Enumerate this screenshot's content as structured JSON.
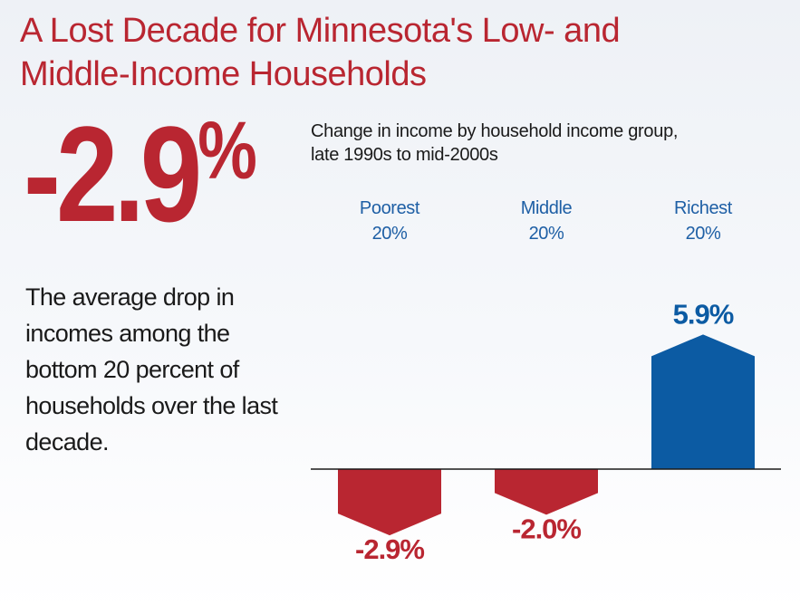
{
  "title_line1": "A Lost Decade for Minnesota's Low- and",
  "title_line2": "Middle-Income Households",
  "big_stat": {
    "number": "-2.9",
    "percent_sign": "%"
  },
  "description": "The average drop in incomes among the bottom 20 percent of households over the last decade.",
  "colors": {
    "title": "#b92631",
    "negative": "#b92631",
    "positive": "#0c5ba3",
    "category_label": "#1e5fa5",
    "axis": "#1a1a1a"
  },
  "chart_data": {
    "type": "bar",
    "title": "",
    "subtitle_line1": "Change in income by household income group,",
    "subtitle_line2": "late 1990s to mid-2000s",
    "categories": [
      {
        "line1": "Poorest",
        "line2": "20%"
      },
      {
        "line1": "Middle",
        "line2": "20%"
      },
      {
        "line1": "Richest",
        "line2": "20%"
      }
    ],
    "values": [
      -2.9,
      -2.0,
      5.9
    ],
    "value_labels": [
      "-2.9%",
      "-2.0%",
      "5.9%"
    ],
    "unit": "%",
    "xlabel": "",
    "ylabel": "",
    "ylim": [
      -3.5,
      7.0
    ],
    "grid": false,
    "legend": "none"
  }
}
